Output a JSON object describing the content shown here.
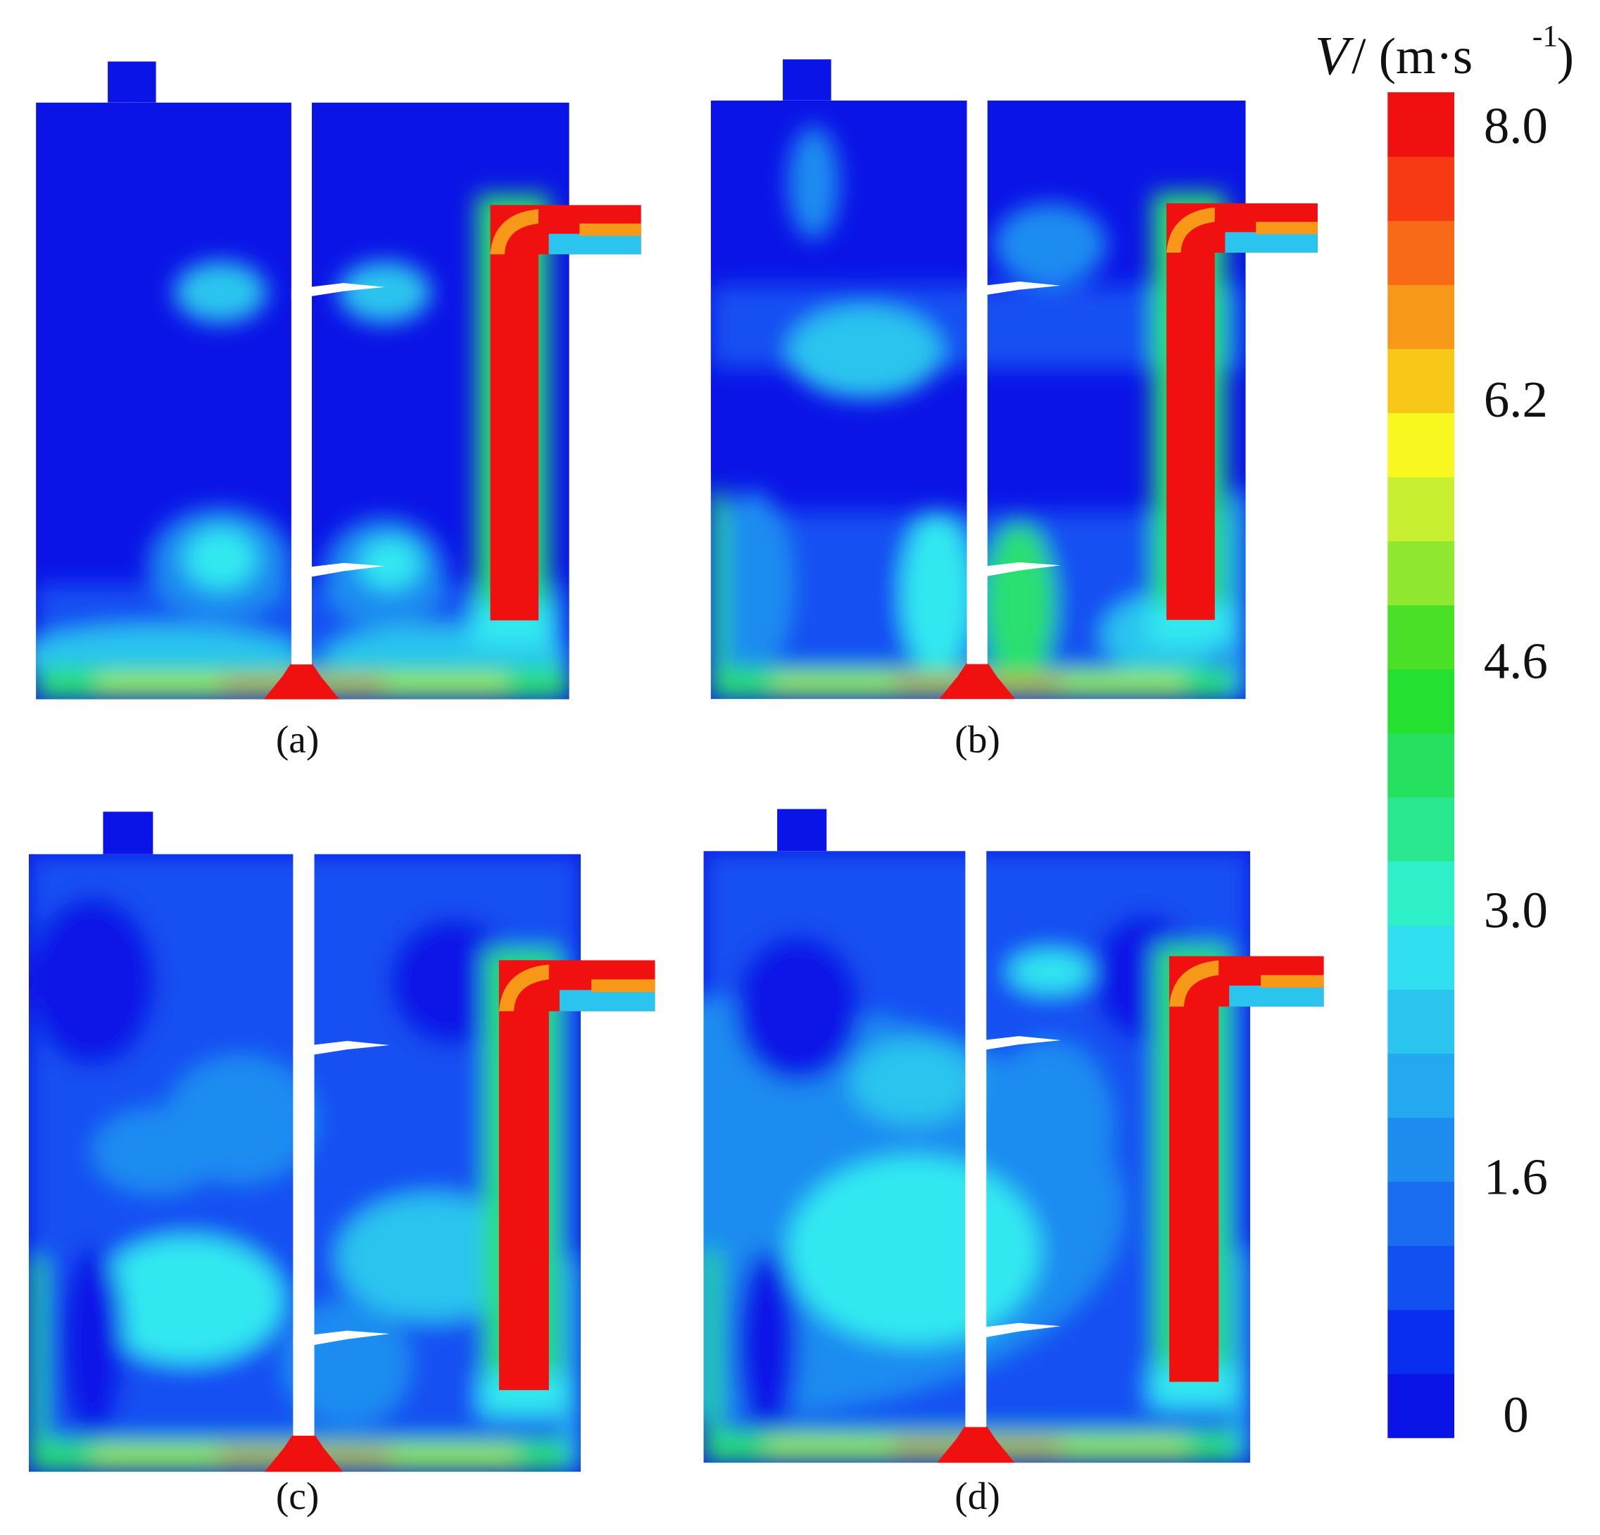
{
  "figure": {
    "panels": [
      {
        "label": "(a)"
      },
      {
        "label": "(b)"
      },
      {
        "label": "(c)"
      },
      {
        "label": "(d)"
      }
    ],
    "colorbar": {
      "symbol": "V",
      "unit_open": "/ (m·s",
      "unit_exp": "-1",
      "unit_close": ")",
      "ticks": [
        "8.0",
        "6.2",
        "4.6",
        "3.0",
        "1.6",
        "0"
      ]
    }
  }
}
